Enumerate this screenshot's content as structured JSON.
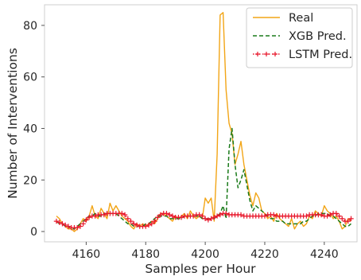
{
  "chart_data": {
    "type": "line",
    "xlabel": "Samples per Hour",
    "ylabel": "Number of Interventions",
    "xlim": [
      4146,
      4251
    ],
    "ylim": [
      -4,
      88
    ],
    "xticks": [
      4160,
      4180,
      4200,
      4220,
      4240
    ],
    "yticks": [
      0,
      20,
      40,
      60,
      80
    ],
    "grid": false,
    "legend_position": "top-right",
    "series": [
      {
        "name": "Real",
        "color": "#f2a516",
        "style": "solid",
        "x": [
          4150,
          4151,
          4152,
          4153,
          4154,
          4155,
          4156,
          4157,
          4158,
          4159,
          4160,
          4161,
          4162,
          4163,
          4164,
          4165,
          4166,
          4167,
          4168,
          4169,
          4170,
          4171,
          4172,
          4173,
          4174,
          4175,
          4176,
          4177,
          4178,
          4179,
          4180,
          4181,
          4182,
          4183,
          4184,
          4185,
          4186,
          4187,
          4188,
          4189,
          4190,
          4191,
          4192,
          4193,
          4194,
          4195,
          4196,
          4197,
          4198,
          4199,
          4200,
          4201,
          4202,
          4203,
          4204,
          4205,
          4206,
          4207,
          4208,
          4209,
          4210,
          4211,
          4212,
          4213,
          4214,
          4215,
          4216,
          4217,
          4218,
          4219,
          4220,
          4221,
          4222,
          4223,
          4224,
          4225,
          4226,
          4227,
          4228,
          4229,
          4230,
          4231,
          4232,
          4233,
          4234,
          4235,
          4236,
          4237,
          4238,
          4239,
          4240,
          4241,
          4242,
          4243,
          4244,
          4245,
          4246,
          4247,
          4248,
          4249
        ],
        "values": [
          6,
          5,
          3,
          2,
          1,
          1,
          0,
          1,
          3,
          5,
          4,
          6,
          10,
          6,
          5,
          9,
          7,
          5,
          11,
          8,
          10,
          8,
          6,
          5,
          4,
          2,
          1,
          3,
          2,
          3,
          2,
          3,
          4,
          3,
          5,
          7,
          7,
          6,
          5,
          4,
          6,
          5,
          6,
          7,
          5,
          8,
          6,
          5,
          6,
          5,
          13,
          11,
          13,
          4,
          30,
          84,
          85,
          55,
          42,
          38,
          26,
          30,
          35,
          26,
          20,
          14,
          10,
          15,
          13,
          8,
          7,
          5,
          6,
          4,
          7,
          5,
          4,
          3,
          2,
          5,
          1,
          3,
          4,
          2,
          3,
          6,
          5,
          8,
          7,
          6,
          10,
          8,
          7,
          5,
          6,
          4,
          1,
          2,
          5,
          4
        ]
      },
      {
        "name": "XGB Pred.",
        "color": "#1a7a1a",
        "style": "dashed",
        "x": [
          4150,
          4151,
          4152,
          4153,
          4154,
          4155,
          4156,
          4157,
          4158,
          4159,
          4160,
          4161,
          4162,
          4163,
          4164,
          4165,
          4166,
          4167,
          4168,
          4169,
          4170,
          4171,
          4172,
          4173,
          4174,
          4175,
          4176,
          4177,
          4178,
          4179,
          4180,
          4181,
          4182,
          4183,
          4184,
          4185,
          4186,
          4187,
          4188,
          4189,
          4190,
          4191,
          4192,
          4193,
          4194,
          4195,
          4196,
          4197,
          4198,
          4199,
          4200,
          4201,
          4202,
          4203,
          4204,
          4205,
          4206,
          4207,
          4208,
          4209,
          4210,
          4211,
          4212,
          4213,
          4214,
          4215,
          4216,
          4217,
          4218,
          4219,
          4220,
          4221,
          4222,
          4223,
          4224,
          4225,
          4226,
          4227,
          4228,
          4229,
          4230,
          4231,
          4232,
          4233,
          4234,
          4235,
          4236,
          4237,
          4238,
          4239,
          4240,
          4241,
          4242,
          4243,
          4244,
          4245,
          4246,
          4247,
          4248,
          4249
        ],
        "values": [
          4,
          3,
          3,
          2,
          2,
          1,
          1,
          2,
          3,
          4,
          5,
          6,
          6,
          7,
          6,
          6,
          7,
          7,
          7,
          7,
          7,
          6,
          5,
          4,
          3,
          3,
          2,
          2,
          2,
          2,
          3,
          3,
          4,
          5,
          6,
          6,
          6,
          6,
          5,
          5,
          5,
          5,
          5,
          6,
          6,
          6,
          6,
          6,
          6,
          5,
          5,
          5,
          5,
          5,
          6,
          7,
          10,
          5,
          32,
          40,
          26,
          17,
          20,
          24,
          18,
          12,
          8,
          10,
          9,
          8,
          7,
          6,
          5,
          5,
          4,
          4,
          4,
          3,
          3,
          3,
          3,
          3,
          3,
          4,
          4,
          5,
          6,
          6,
          7,
          7,
          7,
          7,
          6,
          6,
          5,
          4,
          3,
          2,
          2,
          3
        ]
      },
      {
        "name": "LSTM Pred.",
        "color": "#e8182c",
        "style": "dotted-plus",
        "x": [
          4150,
          4151,
          4152,
          4153,
          4154,
          4155,
          4156,
          4157,
          4158,
          4159,
          4160,
          4161,
          4162,
          4163,
          4164,
          4165,
          4166,
          4167,
          4168,
          4169,
          4170,
          4171,
          4172,
          4173,
          4174,
          4175,
          4176,
          4177,
          4178,
          4179,
          4180,
          4181,
          4182,
          4183,
          4184,
          4185,
          4186,
          4187,
          4188,
          4189,
          4190,
          4191,
          4192,
          4193,
          4194,
          4195,
          4196,
          4197,
          4198,
          4199,
          4200,
          4201,
          4202,
          4203,
          4204,
          4205,
          4206,
          4207,
          4208,
          4209,
          4210,
          4211,
          4212,
          4213,
          4214,
          4215,
          4216,
          4217,
          4218,
          4219,
          4220,
          4221,
          4222,
          4223,
          4224,
          4225,
          4226,
          4227,
          4228,
          4229,
          4230,
          4231,
          4232,
          4233,
          4234,
          4235,
          4236,
          4237,
          4238,
          4239,
          4240,
          4241,
          4242,
          4243,
          4244,
          4245,
          4246,
          4247,
          4248,
          4249
        ],
        "values": [
          4,
          3.5,
          3,
          2.5,
          2,
          1.5,
          1.5,
          1.5,
          2,
          3,
          4.5,
          5.5,
          6,
          6,
          6.5,
          6.5,
          6.5,
          7,
          7,
          7,
          7,
          7,
          7,
          6.5,
          5,
          4,
          3,
          2.5,
          2,
          2,
          2,
          2.5,
          3,
          4,
          5.5,
          6.5,
          7,
          7,
          6.5,
          6,
          5.5,
          5.5,
          5.5,
          6,
          6,
          6,
          6,
          6.5,
          6.5,
          6,
          5,
          4.5,
          5,
          5.5,
          6,
          6.5,
          7,
          7,
          6.5,
          6.5,
          6.5,
          6.5,
          6.5,
          6,
          6,
          6,
          6,
          6,
          6,
          6,
          6,
          6.5,
          6.5,
          6.5,
          6,
          6,
          6,
          6,
          6,
          6,
          6,
          6,
          6,
          6,
          6,
          6.5,
          6.5,
          6.5,
          6.5,
          6.5,
          6,
          6,
          6.5,
          7,
          7,
          6,
          5,
          4,
          4,
          5
        ]
      }
    ]
  }
}
